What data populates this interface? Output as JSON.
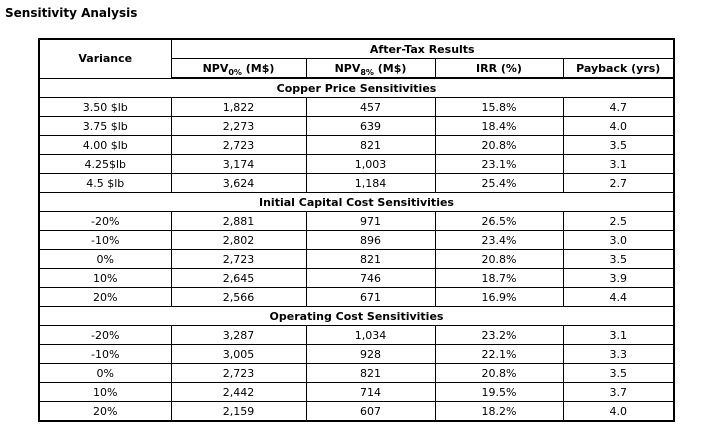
{
  "page": {
    "title": "Sensitivity Analysis",
    "background_color": "#ffffff",
    "text_color": "#000000",
    "border_color": "#000000"
  },
  "table": {
    "header": {
      "variance_label": "Variance",
      "group_label": "After-Tax Results",
      "columns": [
        {
          "base": "NPV",
          "sub": "0%",
          "rest": " (M$)"
        },
        {
          "base": "NPV",
          "sub": "8%",
          "rest": " (M$)"
        },
        {
          "base": "IRR (%)",
          "sub": "",
          "rest": ""
        },
        {
          "base": "Payback (yrs)",
          "sub": "",
          "rest": ""
        }
      ]
    },
    "sections": [
      {
        "title": "Copper Price Sensitivities",
        "rows": [
          [
            "3.50 $lb",
            "1,822",
            "457",
            "15.8%",
            "4.7"
          ],
          [
            "3.75 $lb",
            "2,273",
            "639",
            "18.4%",
            "4.0"
          ],
          [
            "4.00 $lb",
            "2,723",
            "821",
            "20.8%",
            "3.5"
          ],
          [
            "4.25$lb",
            "3,174",
            "1,003",
            "23.1%",
            "3.1"
          ],
          [
            "4.5 $lb",
            "3,624",
            "1,184",
            "25.4%",
            "2.7"
          ]
        ]
      },
      {
        "title": "Initial Capital Cost Sensitivities",
        "rows": [
          [
            "-20%",
            "2,881",
            "971",
            "26.5%",
            "2.5"
          ],
          [
            "-10%",
            "2,802",
            "896",
            "23.4%",
            "3.0"
          ],
          [
            "0%",
            "2,723",
            "821",
            "20.8%",
            "3.5"
          ],
          [
            "10%",
            "2,645",
            "746",
            "18.7%",
            "3.9"
          ],
          [
            "20%",
            "2,566",
            "671",
            "16.9%",
            "4.4"
          ]
        ]
      },
      {
        "title": "Operating Cost Sensitivities",
        "rows": [
          [
            "-20%",
            "3,287",
            "1,034",
            "23.2%",
            "3.1"
          ],
          [
            "-10%",
            "3,005",
            "928",
            "22.1%",
            "3.3"
          ],
          [
            "0%",
            "2,723",
            "821",
            "20.8%",
            "3.5"
          ],
          [
            "10%",
            "2,442",
            "714",
            "19.5%",
            "3.7"
          ],
          [
            "20%",
            "2,159",
            "607",
            "18.2%",
            "4.0"
          ]
        ]
      }
    ]
  }
}
